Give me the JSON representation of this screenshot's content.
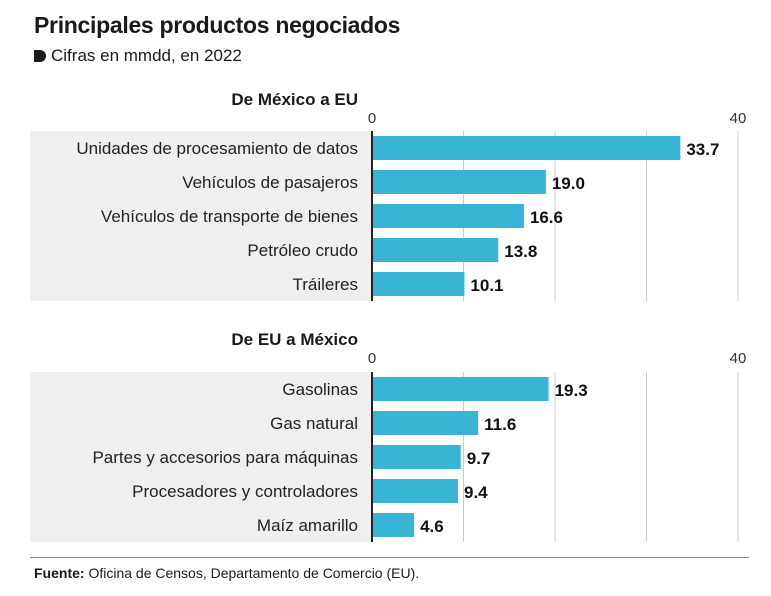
{
  "header": {
    "title": "Principales productos negociados",
    "subtitle": "Cifras en mmdd, en 2022"
  },
  "footer": {
    "source_label": "Fuente:",
    "source_text": " Oficina de Censos, Departamento de Comercio (EU)."
  },
  "colors": {
    "bar": "#3ab4d4",
    "panel": "#efefef",
    "axis": "#222222",
    "grid": "#cccccc"
  },
  "chart_data": [
    {
      "type": "bar",
      "orientation": "horizontal",
      "title": "De México a EU",
      "categories": [
        "Unidades de procesamiento de datos",
        "Vehículos de pasajeros",
        "Vehículos de transporte de bienes",
        "Petróleo crudo",
        "Tráileres"
      ],
      "values": [
        33.7,
        19.0,
        16.6,
        13.8,
        10.1
      ],
      "value_labels": [
        "33.7",
        "19.0",
        "16.6",
        "13.8",
        "10.1"
      ],
      "xlim": [
        0,
        40
      ],
      "ticks": [
        "0",
        "40"
      ],
      "grid": true
    },
    {
      "type": "bar",
      "orientation": "horizontal",
      "title": "De EU a México",
      "categories": [
        "Gasolinas",
        "Gas natural",
        "Partes y accesorios para máquinas",
        "Procesadores y controladores",
        "Maíz amarillo"
      ],
      "values": [
        19.3,
        11.6,
        9.7,
        9.4,
        4.6
      ],
      "value_labels": [
        "19.3",
        "11.6",
        "9.7",
        "9.4",
        "4.6"
      ],
      "xlim": [
        0,
        40
      ],
      "ticks": [
        "0",
        "40"
      ],
      "grid": true
    }
  ]
}
